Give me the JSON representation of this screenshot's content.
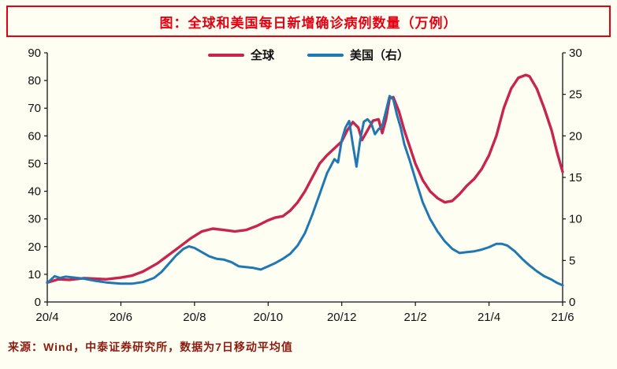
{
  "page": {
    "background": "#FFFEF3"
  },
  "title": {
    "text": "图：全球和美国每日新增确诊病例数量（万例）",
    "color": "#E60012",
    "border_color": "#E60012"
  },
  "legend": {
    "items": [
      {
        "label": "全球",
        "color": "#C82450"
      },
      {
        "label": "美国（右）",
        "color": "#1F78B4"
      }
    ]
  },
  "footer": {
    "text": "来源：Wind，中泰证券研究所，数据为7日移动平均值"
  },
  "chart_data": {
    "type": "line",
    "title": "全球和美国每日新增确诊病例数量（万例）",
    "x_range": [
      0,
      14
    ],
    "x_tick_positions": [
      0,
      2,
      4,
      6,
      8,
      10,
      12,
      14
    ],
    "x_tick_labels": [
      "20/4",
      "20/6",
      "20/8",
      "20/10",
      "20/12",
      "21/2",
      "21/4",
      "21/6"
    ],
    "left_axis": {
      "min": 0,
      "max": 90,
      "step": 10,
      "ticks": [
        0,
        10,
        20,
        30,
        40,
        50,
        60,
        70,
        80,
        90
      ]
    },
    "right_axis": {
      "min": 0,
      "max": 30,
      "step": 5,
      "ticks": [
        0,
        5,
        10,
        15,
        20,
        25,
        30
      ]
    },
    "grid": false,
    "legend_position": "top-center",
    "series": [
      {
        "name": "全球",
        "axis": "left",
        "color": "#C82450",
        "x": [
          0,
          0.3,
          0.6,
          1,
          1.3,
          1.6,
          2,
          2.3,
          2.6,
          3,
          3.3,
          3.6,
          3.9,
          4.2,
          4.5,
          4.8,
          5.1,
          5.4,
          5.7,
          6,
          6.2,
          6.4,
          6.6,
          6.8,
          7,
          7.2,
          7.4,
          7.6,
          7.8,
          8,
          8.15,
          8.3,
          8.45,
          8.55,
          8.7,
          8.85,
          9,
          9.1,
          9.2,
          9.3,
          9.4,
          9.55,
          9.7,
          9.85,
          10,
          10.2,
          10.4,
          10.6,
          10.8,
          11,
          11.2,
          11.4,
          11.6,
          11.8,
          12,
          12.2,
          12.4,
          12.6,
          12.8,
          13,
          13.1,
          13.3,
          13.5,
          13.7,
          13.85,
          14
        ],
        "y": [
          7,
          8.2,
          8,
          8.6,
          8.4,
          8.2,
          8.8,
          9.5,
          11,
          14,
          17,
          20,
          23,
          25.5,
          26.5,
          26,
          25.5,
          26,
          27.5,
          29.5,
          30.5,
          31,
          33,
          36,
          40,
          45,
          50,
          53,
          55.5,
          58,
          62,
          65,
          63,
          58.5,
          62,
          65.5,
          66,
          61,
          66,
          73.5,
          74,
          69,
          62,
          56,
          50,
          44,
          40,
          37.5,
          36,
          36.5,
          39,
          42,
          44.5,
          48,
          53,
          60,
          70,
          77,
          81,
          82,
          81.5,
          77,
          70,
          62,
          54,
          47
        ]
      },
      {
        "name": "美国（右）",
        "axis": "right",
        "color": "#1F78B4",
        "x": [
          0,
          0.2,
          0.35,
          0.5,
          0.7,
          1,
          1.3,
          1.6,
          2,
          2.3,
          2.6,
          2.9,
          3.1,
          3.3,
          3.5,
          3.7,
          3.85,
          4,
          4.2,
          4.4,
          4.6,
          4.8,
          5,
          5.2,
          5.4,
          5.6,
          5.8,
          6,
          6.2,
          6.4,
          6.6,
          6.8,
          7,
          7.2,
          7.4,
          7.6,
          7.8,
          7.9,
          8,
          8.1,
          8.2,
          8.3,
          8.4,
          8.5,
          8.6,
          8.7,
          8.8,
          8.9,
          9,
          9.1,
          9.2,
          9.3,
          9.4,
          9.5,
          9.6,
          9.7,
          9.85,
          10,
          10.2,
          10.4,
          10.6,
          10.8,
          11,
          11.2,
          11.4,
          11.6,
          11.8,
          12,
          12.2,
          12.35,
          12.5,
          12.7,
          12.9,
          13.1,
          13.3,
          13.5,
          13.7,
          13.85,
          14
        ],
        "y": [
          2.3,
          3.1,
          2.9,
          3.05,
          2.95,
          2.8,
          2.55,
          2.35,
          2.2,
          2.2,
          2.4,
          2.9,
          3.6,
          4.6,
          5.6,
          6.4,
          6.7,
          6.5,
          6.0,
          5.5,
          5.2,
          5.1,
          4.8,
          4.3,
          4.2,
          4.1,
          3.9,
          4.3,
          4.7,
          5.2,
          5.8,
          6.8,
          8.3,
          10.5,
          13,
          15.5,
          17.2,
          16.8,
          19.5,
          21,
          21.8,
          19,
          16.3,
          19.5,
          21.7,
          22,
          21.5,
          20.2,
          20.8,
          21.2,
          23,
          24.8,
          24.4,
          22.5,
          21,
          19,
          17,
          14.8,
          12,
          10,
          8.5,
          7.3,
          6.4,
          5.9,
          6.0,
          6.1,
          6.3,
          6.6,
          7.0,
          7.0,
          6.8,
          6.1,
          5.2,
          4.4,
          3.7,
          3.1,
          2.7,
          2.3,
          2.0
        ]
      }
    ]
  }
}
